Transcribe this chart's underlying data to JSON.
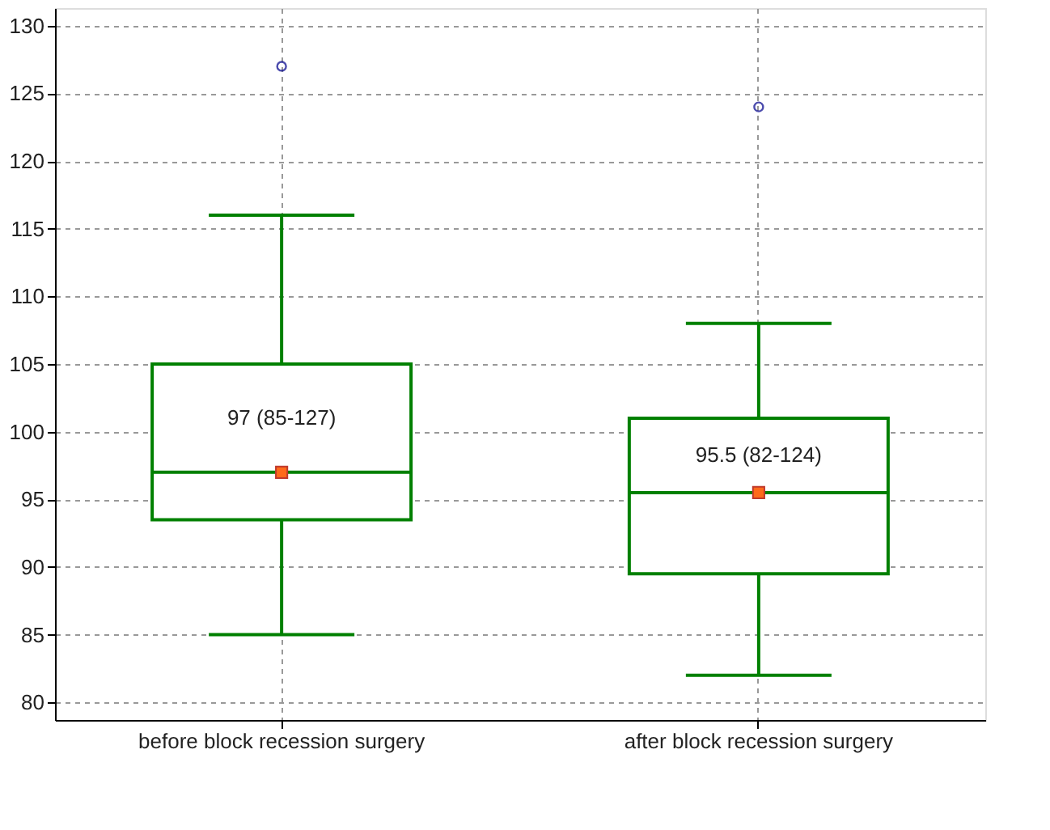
{
  "chart_data": {
    "type": "box",
    "categories": [
      "before block recession surgery",
      "after block recession surgery"
    ],
    "boxes": [
      {
        "low": 85,
        "q1": 93.5,
        "median": 97,
        "q3": 105,
        "high": 116,
        "mean": 97,
        "outliers": [
          127
        ]
      },
      {
        "low": 82,
        "q1": 89.5,
        "median": 95.5,
        "q3": 101,
        "high": 108,
        "mean": 95.5,
        "outliers": [
          124
        ]
      }
    ],
    "color": "#008000",
    "ylim": [
      78.7,
      131.3
    ],
    "yticks": [
      80,
      85,
      90,
      95,
      100,
      105,
      110,
      115,
      120,
      125,
      130
    ],
    "grid": true,
    "annotations": [
      "97 (85-127)",
      "95.5 (82-124)"
    ]
  }
}
